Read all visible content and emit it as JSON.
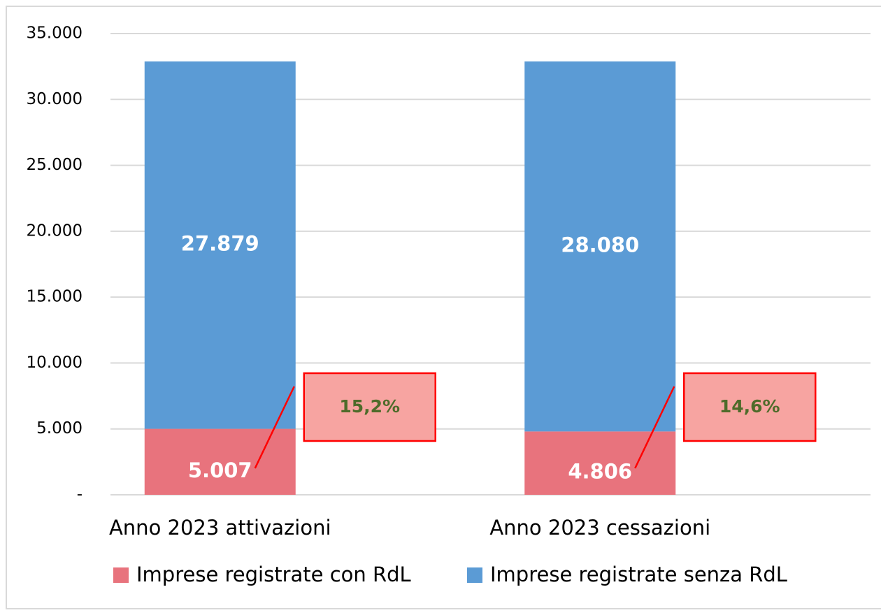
{
  "chart_data": {
    "type": "stacked_bar",
    "categories": [
      "Anno 2023 attivazioni",
      "Anno 2023 cessazioni"
    ],
    "series": [
      {
        "name": "Imprese registrate con RdL",
        "color": "#e8737d",
        "values": [
          5007,
          4806
        ],
        "value_labels": [
          "5.007",
          "4.806"
        ]
      },
      {
        "name": "Imprese registrate senza RdL",
        "color": "#5b9bd5",
        "values": [
          27879,
          28080
        ],
        "value_labels": [
          "27.879",
          "28.080"
        ]
      }
    ],
    "annotations": [
      "15,2%",
      "14,6%"
    ],
    "ylim": [
      0,
      35000
    ],
    "yticks": [
      {
        "value": 0,
        "label": "-"
      },
      {
        "value": 5000,
        "label": "5.000"
      },
      {
        "value": 10000,
        "label": "10.000"
      },
      {
        "value": 15000,
        "label": "15.000"
      },
      {
        "value": 20000,
        "label": "20.000"
      },
      {
        "value": 25000,
        "label": "25.000"
      },
      {
        "value": 30000,
        "label": "30.000"
      },
      {
        "value": 35000,
        "label": "35.000"
      }
    ],
    "grid": true,
    "legend": "bottom"
  }
}
